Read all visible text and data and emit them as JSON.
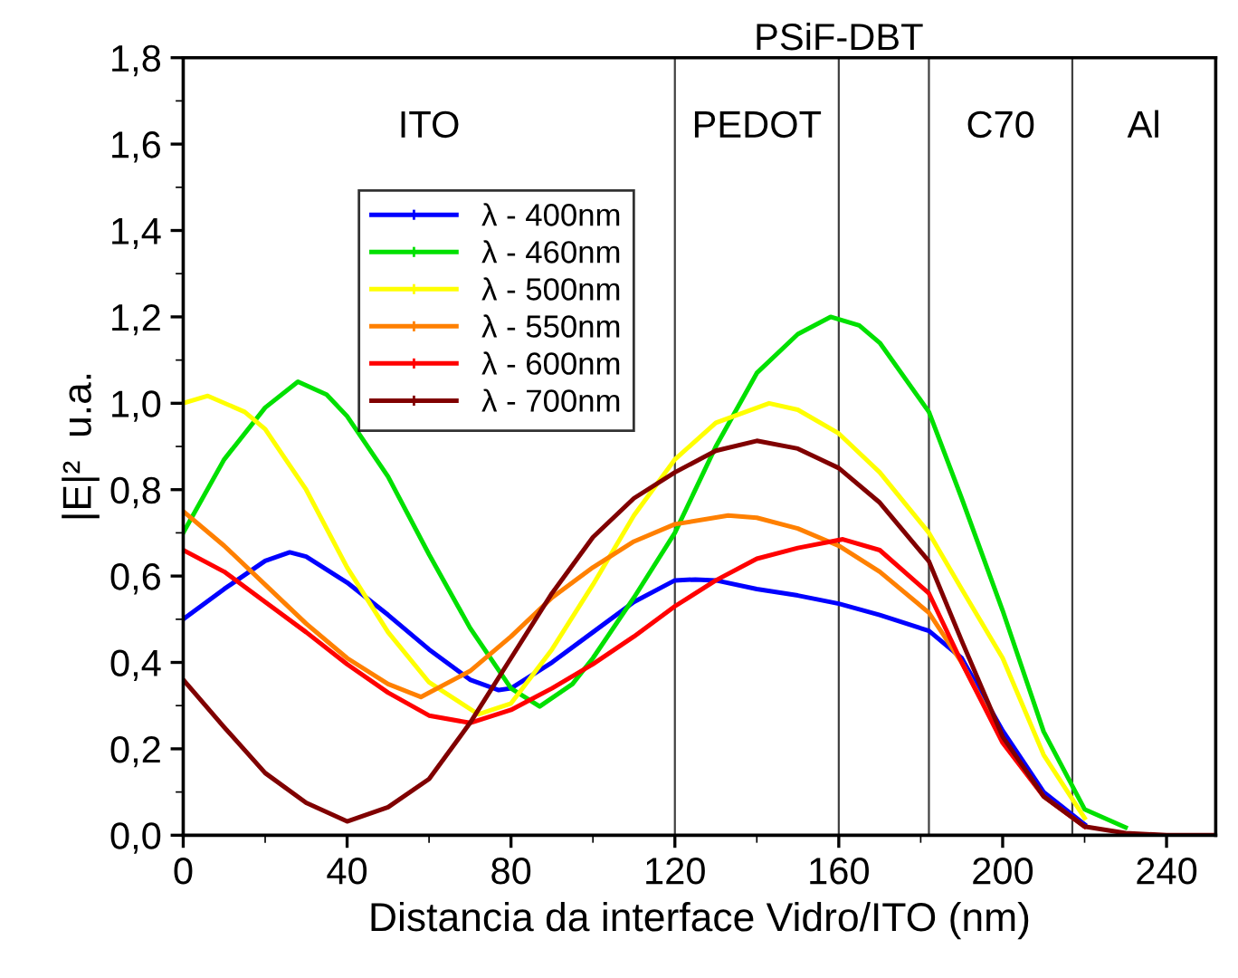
{
  "chart_data": {
    "type": "line",
    "xlabel": "Distancia da interface Vidro/ITO (nm)",
    "ylabel": "|E|²  u.a.",
    "xlim": [
      0,
      252
    ],
    "xticks": [
      0,
      40,
      80,
      120,
      160,
      200,
      240
    ],
    "ylim": [
      0,
      1.8
    ],
    "yticks": [
      {
        "value": 0,
        "label": "0,0"
      },
      {
        "value": 0.2,
        "label": "0,2"
      },
      {
        "value": 0.4,
        "label": "0,4"
      },
      {
        "value": 0.6,
        "label": "0,6"
      },
      {
        "value": 0.8,
        "label": "0,8"
      },
      {
        "value": 1.0,
        "label": "1,0"
      },
      {
        "value": 1.2,
        "label": "1,2"
      },
      {
        "value": 1.4,
        "label": "1,4"
      },
      {
        "value": 1.6,
        "label": "1,6"
      },
      {
        "value": 1.8,
        "label": "1,8"
      }
    ],
    "grid": false,
    "legend": "top left",
    "line_style": "solid",
    "marker": "none",
    "series": [
      {
        "name": "λ - 400nm",
        "color": "#0000ff",
        "x": [
          0,
          10,
          20,
          26,
          30,
          40,
          50,
          60,
          70,
          77,
          80,
          90,
          100,
          110,
          120,
          125,
          130,
          140,
          150,
          160,
          170,
          182,
          190,
          200,
          210,
          220
        ],
        "values": [
          0.5,
          0.57,
          0.635,
          0.655,
          0.645,
          0.585,
          0.51,
          0.43,
          0.36,
          0.336,
          0.34,
          0.4,
          0.47,
          0.54,
          0.59,
          0.592,
          0.59,
          0.57,
          0.555,
          0.536,
          0.51,
          0.473,
          0.41,
          0.242,
          0.1,
          0.025
        ]
      },
      {
        "name": "λ - 460nm",
        "color": "#00e000",
        "x": [
          0,
          10,
          20,
          28,
          35,
          40,
          50,
          60,
          70,
          80,
          87,
          95,
          100,
          110,
          120,
          130,
          140,
          150,
          158,
          165,
          170,
          182,
          190,
          200,
          210,
          220,
          230
        ],
        "values": [
          0.7,
          0.87,
          0.99,
          1.05,
          1.02,
          0.97,
          0.83,
          0.65,
          0.48,
          0.34,
          0.298,
          0.35,
          0.41,
          0.55,
          0.7,
          0.9,
          1.07,
          1.16,
          1.2,
          1.18,
          1.14,
          0.98,
          0.78,
          0.52,
          0.24,
          0.06,
          0.018
        ]
      },
      {
        "name": "λ - 500nm",
        "color": "#ffff00",
        "x": [
          0,
          6,
          15,
          20,
          30,
          40,
          50,
          60,
          72,
          80,
          90,
          100,
          110,
          120,
          130,
          143,
          150,
          160,
          170,
          182,
          190,
          200,
          210,
          220
        ],
        "values": [
          1.0,
          1.017,
          0.98,
          0.94,
          0.8,
          0.62,
          0.47,
          0.354,
          0.28,
          0.305,
          0.43,
          0.58,
          0.74,
          0.87,
          0.955,
          1.0,
          0.985,
          0.93,
          0.84,
          0.7,
          0.57,
          0.41,
          0.186,
          0.04
        ]
      },
      {
        "name": "λ - 550nm",
        "color": "#ff8000",
        "x": [
          0,
          10,
          20,
          30,
          40,
          50,
          58,
          70,
          80,
          90,
          100,
          110,
          120,
          133,
          140,
          150,
          160,
          170,
          182,
          190,
          200
        ],
        "values": [
          0.75,
          0.67,
          0.58,
          0.49,
          0.41,
          0.35,
          0.32,
          0.38,
          0.46,
          0.55,
          0.62,
          0.68,
          0.72,
          0.74,
          0.735,
          0.71,
          0.67,
          0.61,
          0.515,
          0.4,
          0.22
        ]
      },
      {
        "name": "λ - 600nm",
        "color": "#ff0000",
        "x": [
          0,
          10,
          20,
          30,
          40,
          50,
          60,
          70,
          80,
          90,
          100,
          110,
          120,
          130,
          140,
          150,
          161,
          170,
          182,
          190,
          200,
          210,
          220
        ],
        "values": [
          0.66,
          0.61,
          0.54,
          0.47,
          0.396,
          0.33,
          0.277,
          0.26,
          0.29,
          0.34,
          0.396,
          0.46,
          0.53,
          0.59,
          0.64,
          0.665,
          0.685,
          0.66,
          0.56,
          0.4,
          0.214,
          0.09,
          0.02
        ]
      },
      {
        "name": "λ - 700nm",
        "color": "#800000",
        "x": [
          0,
          10,
          20,
          30,
          40,
          50,
          60,
          70,
          80,
          90,
          100,
          110,
          120,
          130,
          140,
          150,
          160,
          170,
          182,
          190,
          200,
          210,
          220,
          230,
          240,
          252
        ],
        "values": [
          0.36,
          0.25,
          0.144,
          0.075,
          0.032,
          0.065,
          0.13,
          0.26,
          0.41,
          0.56,
          0.69,
          0.78,
          0.84,
          0.89,
          0.913,
          0.895,
          0.85,
          0.77,
          0.634,
          0.45,
          0.228,
          0.09,
          0.02,
          0.005,
          0.0,
          0.0
        ]
      }
    ],
    "ref_lines": [
      {
        "axis": "x",
        "value": 120,
        "color": "#404040"
      },
      {
        "axis": "x",
        "value": 160,
        "color": "#404040"
      },
      {
        "axis": "x",
        "value": 182,
        "color": "#404040"
      },
      {
        "axis": "x",
        "value": 217,
        "color": "#404040"
      }
    ],
    "annotations": [
      "ITO",
      "PEDOT",
      "PSiF-DBT",
      "C70",
      "Al"
    ]
  }
}
